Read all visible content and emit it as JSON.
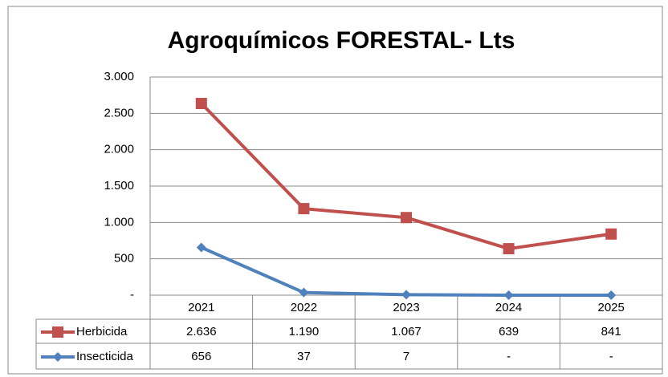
{
  "chart_data": {
    "type": "line",
    "title": "Agroquímicos FORESTAL- Lts",
    "categories": [
      "2021",
      "2022",
      "2023",
      "2024",
      "2025"
    ],
    "series": [
      {
        "name": "Herbicida",
        "color": "#c0504d",
        "marker": "square",
        "values": [
          2636,
          1190,
          1067,
          639,
          841
        ],
        "value_labels": [
          "2.636",
          "1.190",
          "1.067",
          "639",
          "841"
        ]
      },
      {
        "name": "Insecticida",
        "color": "#4f81bd",
        "marker": "diamond",
        "values": [
          656,
          37,
          7,
          0,
          0
        ],
        "value_labels": [
          "656",
          "37",
          "7",
          "-",
          "-"
        ]
      }
    ],
    "ylim": [
      0,
      3000
    ],
    "yticks": [
      {
        "value": 0,
        "label": "-"
      },
      500,
      {
        "value": 1000,
        "label": "1.000"
      },
      {
        "value": 1500,
        "label": "1.500"
      },
      {
        "value": 2000,
        "label": "2.000"
      },
      {
        "value": 2500,
        "label": "2.500"
      },
      {
        "value": 3000,
        "label": "3.000"
      }
    ],
    "grid": true
  }
}
